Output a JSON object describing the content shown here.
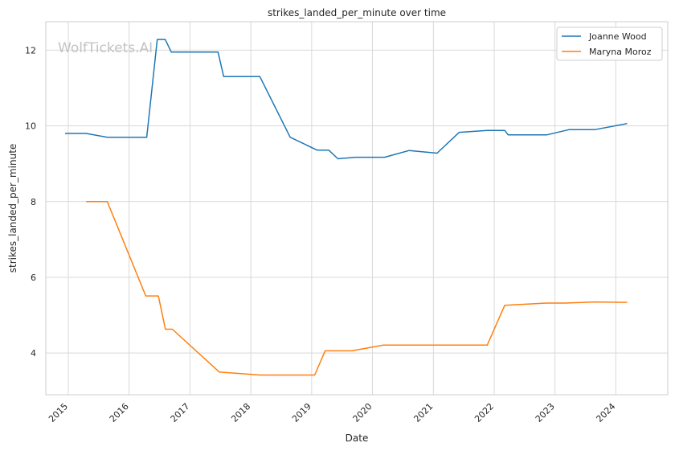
{
  "chart_data": {
    "type": "line",
    "title": "strikes_landed_per_minute over time",
    "xlabel": "Date",
    "ylabel": "strikes_landed_per_minute",
    "watermark": "WolfTickets.AI",
    "xlim": [
      "2014-08-19",
      "2024-11-08"
    ],
    "ylim": [
      2.9,
      12.75
    ],
    "x_ticks": [
      "2015",
      "2016",
      "2017",
      "2018",
      "2019",
      "2020",
      "2021",
      "2022",
      "2023",
      "2024"
    ],
    "y_ticks": [
      4,
      6,
      8,
      10,
      12
    ],
    "grid": true,
    "legend_position": "top-right",
    "series": [
      {
        "name": "Joanne Wood",
        "color": "#1f77b4",
        "points": [
          [
            "2014-12-13",
            9.8
          ],
          [
            "2015-04-18",
            9.8
          ],
          [
            "2015-08-23",
            9.7
          ],
          [
            "2016-04-16",
            9.7
          ],
          [
            "2016-06-18",
            12.28
          ],
          [
            "2016-08-05",
            12.28
          ],
          [
            "2016-09-10",
            11.95
          ],
          [
            "2017-06-18",
            11.95
          ],
          [
            "2017-07-22",
            11.3
          ],
          [
            "2018-02-24",
            11.3
          ],
          [
            "2018-08-25",
            9.7
          ],
          [
            "2019-02-02",
            9.36
          ],
          [
            "2019-04-13",
            9.36
          ],
          [
            "2019-06-08",
            9.13
          ],
          [
            "2019-09-21",
            9.17
          ],
          [
            "2020-03-14",
            9.17
          ],
          [
            "2020-08-08",
            9.35
          ],
          [
            "2021-01-23",
            9.28
          ],
          [
            "2021-06-05",
            9.83
          ],
          [
            "2021-11-20",
            9.88
          ],
          [
            "2022-03-05",
            9.88
          ],
          [
            "2022-03-26",
            9.76
          ],
          [
            "2022-11-12",
            9.76
          ],
          [
            "2023-03-25",
            9.9
          ],
          [
            "2023-08-26",
            9.9
          ],
          [
            "2024-03-09",
            10.06
          ]
        ]
      },
      {
        "name": "Maryna Moroz",
        "color": "#ff7f0e",
        "points": [
          [
            "2015-04-18",
            8.0
          ],
          [
            "2015-08-23",
            8.0
          ],
          [
            "2016-04-10",
            5.51
          ],
          [
            "2016-06-25",
            5.51
          ],
          [
            "2016-08-06",
            4.63
          ],
          [
            "2016-09-17",
            4.63
          ],
          [
            "2017-06-25",
            3.5
          ],
          [
            "2018-02-24",
            3.42
          ],
          [
            "2019-01-19",
            3.42
          ],
          [
            "2019-03-23",
            4.06
          ],
          [
            "2019-08-31",
            4.06
          ],
          [
            "2020-03-07",
            4.21
          ],
          [
            "2021-11-20",
            4.21
          ],
          [
            "2022-03-05",
            5.26
          ],
          [
            "2022-11-12",
            5.32
          ],
          [
            "2023-03-04",
            5.32
          ],
          [
            "2023-08-26",
            5.35
          ],
          [
            "2024-03-09",
            5.34
          ]
        ]
      }
    ]
  }
}
